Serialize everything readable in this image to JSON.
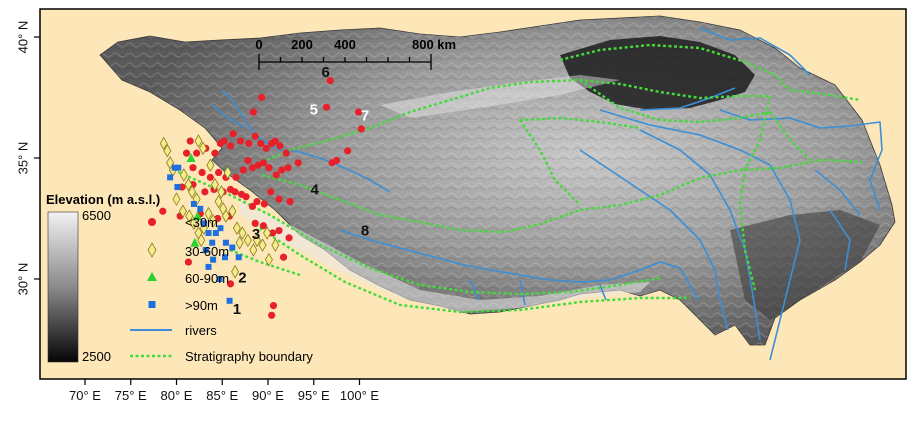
{
  "map": {
    "background_color": "#fde7b8",
    "frame_color": "#000000",
    "river_color": "#3b8fd6",
    "boundary_color": "#45d93b",
    "lon_ticks": [
      {
        "lon": 70,
        "label": "70° E"
      },
      {
        "lon": 75,
        "label": "75° E"
      },
      {
        "lon": 80,
        "label": "80° E"
      },
      {
        "lon": 85,
        "label": "85° E"
      },
      {
        "lon": 90,
        "label": "90° E"
      },
      {
        "lon": 95,
        "label": "95° E"
      },
      {
        "lon": 100,
        "label": "100° E"
      }
    ],
    "lat_ticks": [
      {
        "lat": 40,
        "label": "40° N"
      },
      {
        "lat": 35,
        "label": "35° N"
      },
      {
        "lat": 30,
        "label": "30° N"
      }
    ],
    "scale_bar": {
      "labels": [
        "0",
        "200",
        "400",
        "800 km"
      ]
    },
    "region_labels": [
      {
        "text": "1",
        "lon": 86.6,
        "lat": 28.55,
        "color": "#111111"
      },
      {
        "text": "2",
        "lon": 87.2,
        "lat": 29.85,
        "color": "#111111"
      },
      {
        "text": "3",
        "lon": 88.7,
        "lat": 31.65,
        "color": "#111111"
      },
      {
        "text": "4",
        "lon": 95.1,
        "lat": 33.5,
        "color": "#111111"
      },
      {
        "text": "5",
        "lon": 95.0,
        "lat": 36.8,
        "color": "#ffffff"
      },
      {
        "text": "6",
        "lon": 96.3,
        "lat": 38.35,
        "color": "#111111"
      },
      {
        "text": "7",
        "lon": 100.6,
        "lat": 36.55,
        "color": "#ffffff"
      },
      {
        "text": "8",
        "lon": 100.6,
        "lat": 31.8,
        "color": "#111111"
      }
    ]
  },
  "legend": {
    "elevation_title": "Elevation (m a.s.l.)",
    "elevation_max": "6500",
    "elevation_min": "2500",
    "items": [
      {
        "label": "<30m",
        "color": "#e8202a"
      },
      {
        "label": "30-60m",
        "color": "#f4ec8a"
      },
      {
        "label": "60-90m",
        "color": "#2ad32e"
      },
      {
        "label": ">90m",
        "color": "#1e6fe0"
      },
      {
        "label": "rivers",
        "color": "#3b8fd6"
      },
      {
        "label": "Stratigraphy boundary",
        "color": "#45d93b"
      }
    ]
  },
  "sites": {
    "red": [
      [
        81.1,
        35.2
      ],
      [
        81.5,
        35.7
      ],
      [
        82.2,
        35.2
      ],
      [
        83.2,
        35.4
      ],
      [
        84.2,
        35.2
      ],
      [
        84.8,
        35.6
      ],
      [
        85.2,
        35.7
      ],
      [
        85.9,
        35.5
      ],
      [
        86.2,
        36.0
      ],
      [
        87.0,
        35.7
      ],
      [
        87.9,
        35.6
      ],
      [
        88.4,
        36.9
      ],
      [
        89.3,
        37.5
      ],
      [
        88.6,
        35.9
      ],
      [
        89.2,
        35.6
      ],
      [
        89.8,
        35.4
      ],
      [
        90.4,
        35.6
      ],
      [
        90.8,
        35.7
      ],
      [
        91.3,
        35.5
      ],
      [
        92.0,
        35.2
      ],
      [
        81.8,
        34.6
      ],
      [
        82.8,
        34.4
      ],
      [
        83.7,
        34.2
      ],
      [
        84.6,
        34.4
      ],
      [
        85.4,
        34.2
      ],
      [
        86.5,
        34.2
      ],
      [
        87.3,
        34.5
      ],
      [
        87.8,
        34.9
      ],
      [
        88.3,
        34.6
      ],
      [
        88.9,
        34.7
      ],
      [
        89.5,
        34.8
      ],
      [
        90.1,
        34.6
      ],
      [
        90.9,
        34.3
      ],
      [
        91.5,
        34.5
      ],
      [
        92.2,
        34.6
      ],
      [
        93.3,
        34.8
      ],
      [
        80.6,
        33.8
      ],
      [
        81.8,
        33.9
      ],
      [
        83.1,
        33.6
      ],
      [
        84.1,
        33.7
      ],
      [
        85.1,
        33.6
      ],
      [
        85.9,
        33.7
      ],
      [
        86.4,
        33.6
      ],
      [
        87.1,
        33.5
      ],
      [
        87.6,
        33.4
      ],
      [
        88.3,
        33.0
      ],
      [
        88.8,
        33.2
      ],
      [
        89.6,
        33.1
      ],
      [
        90.3,
        33.6
      ],
      [
        91.2,
        33.3
      ],
      [
        92.4,
        33.2
      ],
      [
        78.5,
        32.8
      ],
      [
        80.4,
        32.6
      ],
      [
        82.6,
        32.7
      ],
      [
        84.5,
        32.5
      ],
      [
        85.8,
        32.6
      ],
      [
        88.6,
        32.3
      ],
      [
        89.5,
        32.2
      ],
      [
        90.5,
        31.9
      ],
      [
        91.2,
        32.0
      ],
      [
        92.3,
        31.7
      ],
      [
        81.3,
        30.7
      ],
      [
        85.9,
        29.8
      ],
      [
        90.4,
        28.5
      ],
      [
        90.6,
        28.9
      ],
      [
        91.7,
        30.9
      ],
      [
        96.8,
        38.2
      ],
      [
        96.4,
        37.1
      ],
      [
        99.9,
        36.9
      ],
      [
        100.2,
        36.2
      ],
      [
        97.0,
        34.8
      ],
      [
        97.5,
        34.9
      ],
      [
        98.7,
        35.3
      ]
    ],
    "yellow": [
      [
        78.6,
        35.6
      ],
      [
        79.0,
        35.3
      ],
      [
        79.3,
        34.8
      ],
      [
        79.6,
        34.5
      ],
      [
        80.8,
        34.3
      ],
      [
        81.3,
        33.9
      ],
      [
        81.7,
        33.6
      ],
      [
        82.2,
        33.3
      ],
      [
        82.4,
        35.7
      ],
      [
        82.9,
        35.4
      ],
      [
        83.7,
        34.7
      ],
      [
        84.2,
        33.9
      ],
      [
        84.6,
        33.2
      ],
      [
        85.1,
        32.9
      ],
      [
        85.4,
        32.6
      ],
      [
        86.1,
        32.8
      ],
      [
        86.6,
        32.1
      ],
      [
        86.9,
        31.5
      ],
      [
        87.2,
        31.9
      ],
      [
        87.8,
        31.6
      ],
      [
        80.0,
        33.3
      ],
      [
        80.7,
        32.8
      ],
      [
        81.4,
        32.6
      ],
      [
        81.9,
        32.3
      ],
      [
        82.4,
        31.9
      ],
      [
        82.7,
        31.6
      ],
      [
        83.0,
        32.1
      ],
      [
        83.5,
        32.7
      ],
      [
        84.0,
        32.4
      ],
      [
        84.9,
        33.6
      ],
      [
        85.6,
        34.4
      ],
      [
        88.4,
        31.2
      ],
      [
        88.8,
        31.6
      ],
      [
        89.4,
        31.4
      ],
      [
        90.1,
        30.8
      ],
      [
        90.8,
        31.4
      ],
      [
        86.4,
        30.3
      ],
      [
        89.9,
        31.9
      ]
    ],
    "green": [
      [
        81.6,
        35.0
      ],
      [
        82.3,
        32.6
      ],
      [
        82.0,
        31.5
      ]
    ],
    "blue": [
      [
        79.3,
        34.2
      ],
      [
        79.8,
        34.6
      ],
      [
        80.2,
        34.6
      ],
      [
        80.1,
        33.8
      ],
      [
        81.9,
        33.1
      ],
      [
        82.6,
        32.9
      ],
      [
        83.0,
        32.3
      ],
      [
        83.5,
        31.9
      ],
      [
        83.9,
        31.5
      ],
      [
        84.3,
        31.9
      ],
      [
        84.8,
        32.1
      ],
      [
        85.4,
        31.5
      ],
      [
        86.1,
        31.3
      ],
      [
        86.8,
        30.9
      ],
      [
        83.2,
        31.2
      ],
      [
        84.0,
        30.8
      ],
      [
        85.3,
        30.9
      ],
      [
        83.5,
        30.5
      ],
      [
        84.7,
        30.0
      ],
      [
        85.8,
        29.1
      ]
    ]
  }
}
